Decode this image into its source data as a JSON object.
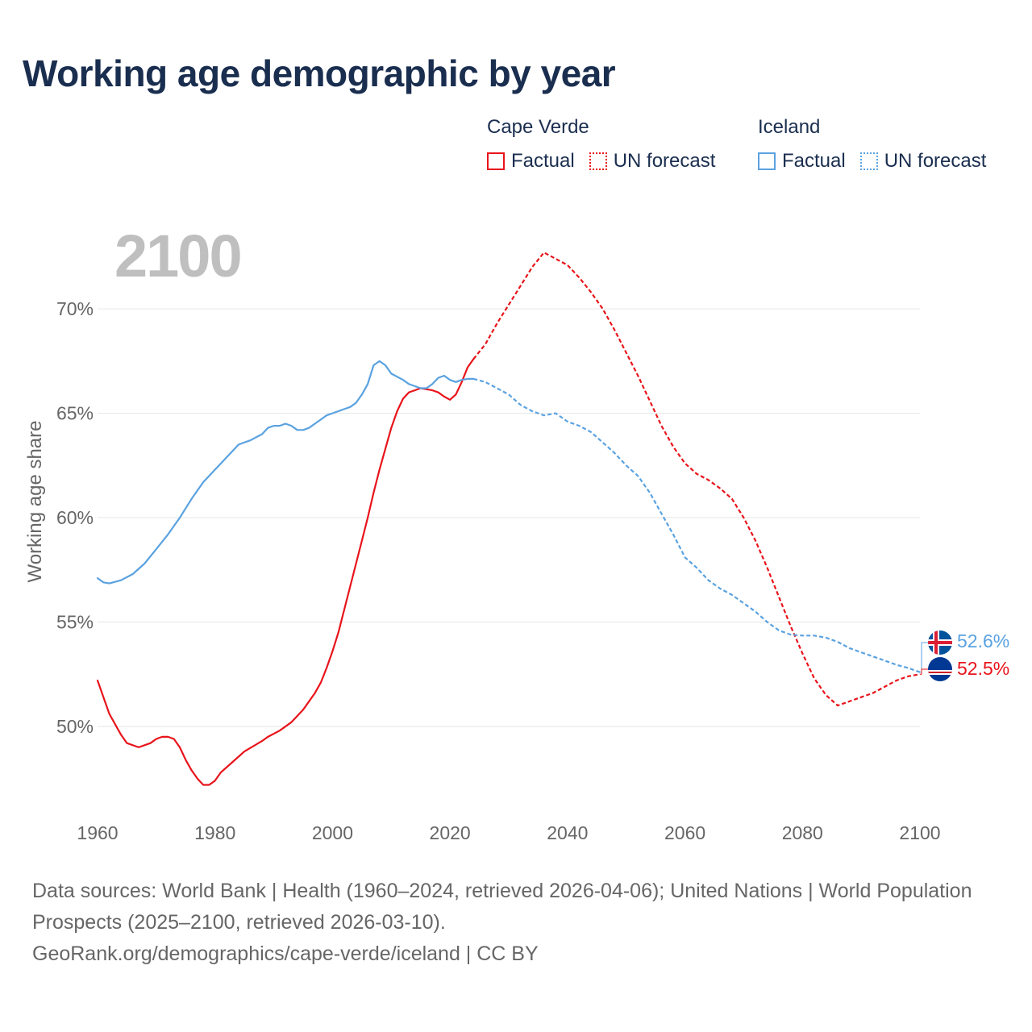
{
  "title": "Working age demographic by year",
  "legend": {
    "groups": [
      {
        "name": "Cape Verde",
        "color": "#e8141b",
        "factual_label": "Factual",
        "forecast_label": "UN forecast"
      },
      {
        "name": "Iceland",
        "color": "#5aa2e0",
        "factual_label": "Factual",
        "forecast_label": "UN forecast"
      }
    ]
  },
  "year_watermark": "2100",
  "footer": {
    "sources": "Data sources: World Bank | Health (1960–2024, retrieved 2026-04-06); United Nations | World Population Prospects (2025–2100, retrieved 2026-03-10).",
    "credit": "GeoRank.org/demographics/cape-verde/iceland | CC BY"
  },
  "end_labels": {
    "iceland": "52.6%",
    "cape_verde": "52.5%"
  },
  "chart_data": {
    "type": "line",
    "title": "Working age demographic by year",
    "xlabel": "",
    "ylabel": "Working age share",
    "xlim": [
      1960,
      2100
    ],
    "ylim": [
      45.5,
      73.5
    ],
    "xticks": [
      1960,
      1980,
      2000,
      2020,
      2040,
      2060,
      2080,
      2100
    ],
    "xtick_labels": [
      "1960",
      "1980",
      "2000",
      "2020",
      "2040",
      "2060",
      "2080",
      "2100"
    ],
    "yticks": [
      50,
      55,
      60,
      65,
      70
    ],
    "ytick_labels": [
      "50%",
      "55%",
      "60%",
      "65%",
      "70%"
    ],
    "grid": true,
    "series": [
      {
        "name": "Cape Verde",
        "color": "#e8141b",
        "factual": [
          [
            1960,
            52.2
          ],
          [
            1962,
            50.6
          ],
          [
            1964,
            49.6
          ],
          [
            1965,
            49.2
          ],
          [
            1967,
            49.0
          ],
          [
            1969,
            49.2
          ],
          [
            1970,
            49.4
          ],
          [
            1971,
            49.5
          ],
          [
            1972,
            49.5
          ],
          [
            1973,
            49.4
          ],
          [
            1974,
            49.0
          ],
          [
            1975,
            48.4
          ],
          [
            1976,
            47.9
          ],
          [
            1977,
            47.5
          ],
          [
            1978,
            47.2
          ],
          [
            1979,
            47.2
          ],
          [
            1980,
            47.4
          ],
          [
            1981,
            47.8
          ],
          [
            1983,
            48.3
          ],
          [
            1985,
            48.8
          ],
          [
            1988,
            49.3
          ],
          [
            1989,
            49.5
          ],
          [
            1991,
            49.8
          ],
          [
            1993,
            50.2
          ],
          [
            1995,
            50.8
          ],
          [
            1997,
            51.6
          ],
          [
            1998,
            52.1
          ],
          [
            1999,
            52.8
          ],
          [
            2000,
            53.6
          ],
          [
            2001,
            54.5
          ],
          [
            2002,
            55.6
          ],
          [
            2003,
            56.7
          ],
          [
            2004,
            57.8
          ],
          [
            2005,
            58.9
          ],
          [
            2006,
            60.0
          ],
          [
            2007,
            61.2
          ],
          [
            2008,
            62.3
          ],
          [
            2009,
            63.3
          ],
          [
            2010,
            64.3
          ],
          [
            2011,
            65.1
          ],
          [
            2012,
            65.7
          ],
          [
            2013,
            66.0
          ],
          [
            2014,
            66.1
          ],
          [
            2015,
            66.2
          ],
          [
            2016,
            66.15
          ],
          [
            2017,
            66.1
          ],
          [
            2018,
            66.0
          ],
          [
            2019,
            65.8
          ],
          [
            2020,
            65.65
          ],
          [
            2021,
            65.9
          ],
          [
            2022,
            66.5
          ],
          [
            2023,
            67.2
          ],
          [
            2024,
            67.6
          ]
        ],
        "forecast": [
          [
            2024,
            67.6
          ],
          [
            2026,
            68.3
          ],
          [
            2028,
            69.3
          ],
          [
            2030,
            70.2
          ],
          [
            2032,
            71.1
          ],
          [
            2034,
            72.0
          ],
          [
            2036,
            72.7
          ],
          [
            2038,
            72.4
          ],
          [
            2040,
            72.1
          ],
          [
            2042,
            71.5
          ],
          [
            2044,
            70.8
          ],
          [
            2046,
            70.0
          ],
          [
            2048,
            69.0
          ],
          [
            2050,
            67.9
          ],
          [
            2052,
            66.8
          ],
          [
            2054,
            65.6
          ],
          [
            2056,
            64.4
          ],
          [
            2058,
            63.4
          ],
          [
            2060,
            62.6
          ],
          [
            2062,
            62.1
          ],
          [
            2064,
            61.8
          ],
          [
            2066,
            61.4
          ],
          [
            2068,
            60.9
          ],
          [
            2070,
            60.0
          ],
          [
            2072,
            58.9
          ],
          [
            2074,
            57.6
          ],
          [
            2076,
            56.2
          ],
          [
            2078,
            54.8
          ],
          [
            2080,
            53.5
          ],
          [
            2082,
            52.3
          ],
          [
            2084,
            51.5
          ],
          [
            2086,
            51.0
          ],
          [
            2088,
            51.2
          ],
          [
            2090,
            51.4
          ],
          [
            2092,
            51.6
          ],
          [
            2094,
            51.9
          ],
          [
            2096,
            52.2
          ],
          [
            2098,
            52.4
          ],
          [
            2100,
            52.5
          ]
        ]
      },
      {
        "name": "Iceland",
        "color": "#5aa2e0",
        "factual": [
          [
            1960,
            57.1
          ],
          [
            1961,
            56.9
          ],
          [
            1962,
            56.85
          ],
          [
            1964,
            57.0
          ],
          [
            1966,
            57.3
          ],
          [
            1968,
            57.8
          ],
          [
            1970,
            58.5
          ],
          [
            1972,
            59.2
          ],
          [
            1974,
            60.0
          ],
          [
            1976,
            60.9
          ],
          [
            1978,
            61.7
          ],
          [
            1980,
            62.3
          ],
          [
            1982,
            62.9
          ],
          [
            1983,
            63.2
          ],
          [
            1984,
            63.5
          ],
          [
            1986,
            63.7
          ],
          [
            1988,
            64.0
          ],
          [
            1989,
            64.3
          ],
          [
            1990,
            64.4
          ],
          [
            1991,
            64.4
          ],
          [
            1992,
            64.5
          ],
          [
            1993,
            64.4
          ],
          [
            1994,
            64.2
          ],
          [
            1995,
            64.2
          ],
          [
            1996,
            64.3
          ],
          [
            1997,
            64.5
          ],
          [
            1998,
            64.7
          ],
          [
            1999,
            64.9
          ],
          [
            2000,
            65.0
          ],
          [
            2002,
            65.2
          ],
          [
            2003,
            65.3
          ],
          [
            2004,
            65.5
          ],
          [
            2005,
            65.9
          ],
          [
            2006,
            66.4
          ],
          [
            2007,
            67.3
          ],
          [
            2008,
            67.5
          ],
          [
            2009,
            67.3
          ],
          [
            2010,
            66.9
          ],
          [
            2012,
            66.6
          ],
          [
            2013,
            66.4
          ],
          [
            2015,
            66.2
          ],
          [
            2016,
            66.2
          ],
          [
            2017,
            66.4
          ],
          [
            2018,
            66.7
          ],
          [
            2019,
            66.8
          ],
          [
            2020,
            66.6
          ],
          [
            2021,
            66.5
          ],
          [
            2022,
            66.6
          ],
          [
            2023,
            66.65
          ],
          [
            2024,
            66.65
          ]
        ],
        "forecast": [
          [
            2024,
            66.65
          ],
          [
            2026,
            66.5
          ],
          [
            2028,
            66.2
          ],
          [
            2030,
            65.9
          ],
          [
            2032,
            65.4
          ],
          [
            2034,
            65.1
          ],
          [
            2036,
            64.9
          ],
          [
            2038,
            65.0
          ],
          [
            2040,
            64.6
          ],
          [
            2042,
            64.4
          ],
          [
            2044,
            64.1
          ],
          [
            2046,
            63.6
          ],
          [
            2048,
            63.1
          ],
          [
            2050,
            62.5
          ],
          [
            2052,
            62.0
          ],
          [
            2054,
            61.2
          ],
          [
            2056,
            60.2
          ],
          [
            2058,
            59.2
          ],
          [
            2060,
            58.1
          ],
          [
            2062,
            57.6
          ],
          [
            2064,
            57.0
          ],
          [
            2066,
            56.6
          ],
          [
            2068,
            56.3
          ],
          [
            2070,
            55.9
          ],
          [
            2072,
            55.5
          ],
          [
            2074,
            55.0
          ],
          [
            2076,
            54.6
          ],
          [
            2078,
            54.4
          ],
          [
            2080,
            54.35
          ],
          [
            2082,
            54.35
          ],
          [
            2084,
            54.25
          ],
          [
            2086,
            54.05
          ],
          [
            2088,
            53.75
          ],
          [
            2090,
            53.55
          ],
          [
            2092,
            53.35
          ],
          [
            2094,
            53.15
          ],
          [
            2096,
            52.95
          ],
          [
            2098,
            52.8
          ],
          [
            2100,
            52.6
          ]
        ]
      }
    ]
  }
}
